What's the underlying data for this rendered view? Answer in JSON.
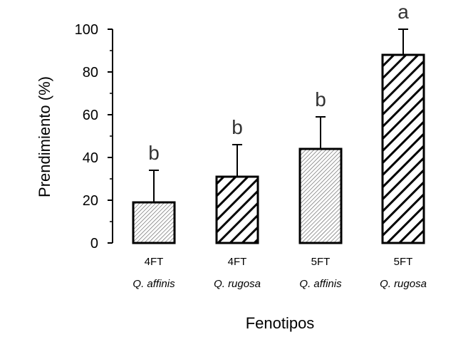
{
  "chart_data": {
    "type": "bar",
    "xlabel": "Fenotipos",
    "ylabel": "Prendimiento (%)",
    "ylim": [
      0,
      100
    ],
    "yticks": [
      0,
      20,
      40,
      60,
      80,
      100
    ],
    "categories": [
      {
        "phenotype": "4FT",
        "species": "Q. affinis",
        "value": 19,
        "error": 15,
        "significance": "b",
        "hatch": "fine"
      },
      {
        "phenotype": "4FT",
        "species": "Q. rugosa",
        "value": 31,
        "error": 15,
        "significance": "b",
        "hatch": "bold"
      },
      {
        "phenotype": "5FT",
        "species": "Q. affinis",
        "value": 44,
        "error": 15,
        "significance": "b",
        "hatch": "fine"
      },
      {
        "phenotype": "5FT",
        "species": "Q. rugosa",
        "value": 88,
        "error": 12,
        "significance": "a",
        "hatch": "bold"
      }
    ],
    "grid": false
  }
}
